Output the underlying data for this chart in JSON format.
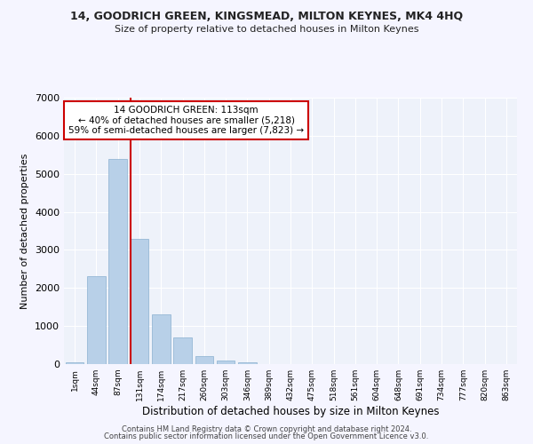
{
  "title1": "14, GOODRICH GREEN, KINGSMEAD, MILTON KEYNES, MK4 4HQ",
  "title2": "Size of property relative to detached houses in Milton Keynes",
  "xlabel": "Distribution of detached houses by size in Milton Keynes",
  "ylabel": "Number of detached properties",
  "categories": [
    "1sqm",
    "44sqm",
    "87sqm",
    "131sqm",
    "174sqm",
    "217sqm",
    "260sqm",
    "303sqm",
    "346sqm",
    "389sqm",
    "432sqm",
    "475sqm",
    "518sqm",
    "561sqm",
    "604sqm",
    "648sqm",
    "691sqm",
    "734sqm",
    "777sqm",
    "820sqm",
    "863sqm"
  ],
  "values": [
    50,
    2300,
    5400,
    3300,
    1300,
    700,
    200,
    100,
    50,
    10,
    5,
    0,
    0,
    0,
    0,
    0,
    0,
    0,
    0,
    0,
    0
  ],
  "bar_color": "#b8d0e8",
  "bar_edge_color": "#8ab0d0",
  "bar_width": 0.85,
  "vline_color": "#cc0000",
  "ylim": [
    0,
    7000
  ],
  "annotation_text": "14 GOODRICH GREEN: 113sqm\n← 40% of detached houses are smaller (5,218)\n59% of semi-detached houses are larger (7,823) →",
  "annotation_box_color": "#ffffff",
  "annotation_box_edge": "#cc0000",
  "bg_color": "#eef2fa",
  "grid_color": "#ffffff",
  "footer1": "Contains HM Land Registry data © Crown copyright and database right 2024.",
  "footer2": "Contains public sector information licensed under the Open Government Licence v3.0."
}
